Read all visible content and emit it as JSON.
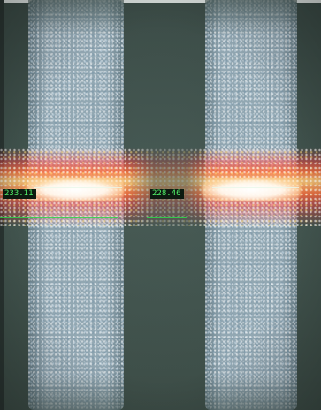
{
  "image": {
    "measurements": {
      "left_readout": "233.11",
      "right_readout": "228.46"
    },
    "colors": {
      "background": "#3b4b44",
      "stripe": "#8fa6b3",
      "glow_outer": "#ff4a3c",
      "glow_inner": "#ffffff",
      "readout_text": "#52f26a",
      "readout_bg": "#0d1a10",
      "measurement_line": "#2fd84a"
    }
  }
}
